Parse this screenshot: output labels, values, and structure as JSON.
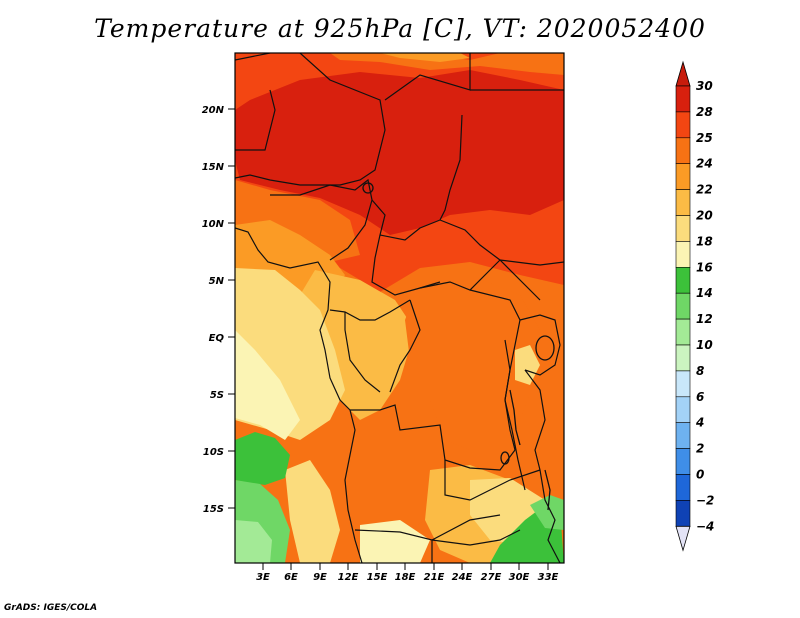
{
  "title": "Temperature at 925hPa [C], VT: 2020052400",
  "credit": "GrADS: IGES/COLA",
  "map": {
    "lat_labels": [
      "20N",
      "15N",
      "10N",
      "5N",
      "EQ",
      "5S",
      "10S",
      "15S"
    ],
    "lon_labels": [
      "3E",
      "6E",
      "9E",
      "12E",
      "15E",
      "18E",
      "21E",
      "24E",
      "27E",
      "30E",
      "33E"
    ],
    "lat_range": [
      -19.6,
      24.7
    ],
    "lon_range": [
      0.0,
      34.6
    ]
  },
  "colorbar": {
    "levels": [
      "30",
      "28",
      "25",
      "24",
      "22",
      "20",
      "18",
      "16",
      "14",
      "12",
      "10",
      "8",
      "6",
      "4",
      "2",
      "0",
      "−2",
      "−4"
    ],
    "colors": [
      "#d8200e",
      "#f34612",
      "#f77214",
      "#fb9b25",
      "#fbbb45",
      "#fbdc7d",
      "#fbf4b4",
      "#3cc13a",
      "#6fd766",
      "#a3ea96",
      "#cbf4c0",
      "#c9e7fa",
      "#a3d2f7",
      "#6eb2f0",
      "#3f8ee8",
      "#1e67d9",
      "#0f42b5",
      "#0a1f84"
    ],
    "top_arrow_color": "#c81c0c",
    "bottom_arrow_color": "#e3e3f6"
  },
  "fill_colors": {
    "hot": "#d8200e",
    "warm": "#f34612",
    "orange": "#f77214",
    "light_orange": "#fb9b25",
    "amber": "#fbbb45",
    "yellow": "#fbdc7d",
    "pale": "#fbf4b4",
    "green": "#3cc13a",
    "light_green": "#6fd766",
    "pale_green": "#a3ea96"
  }
}
